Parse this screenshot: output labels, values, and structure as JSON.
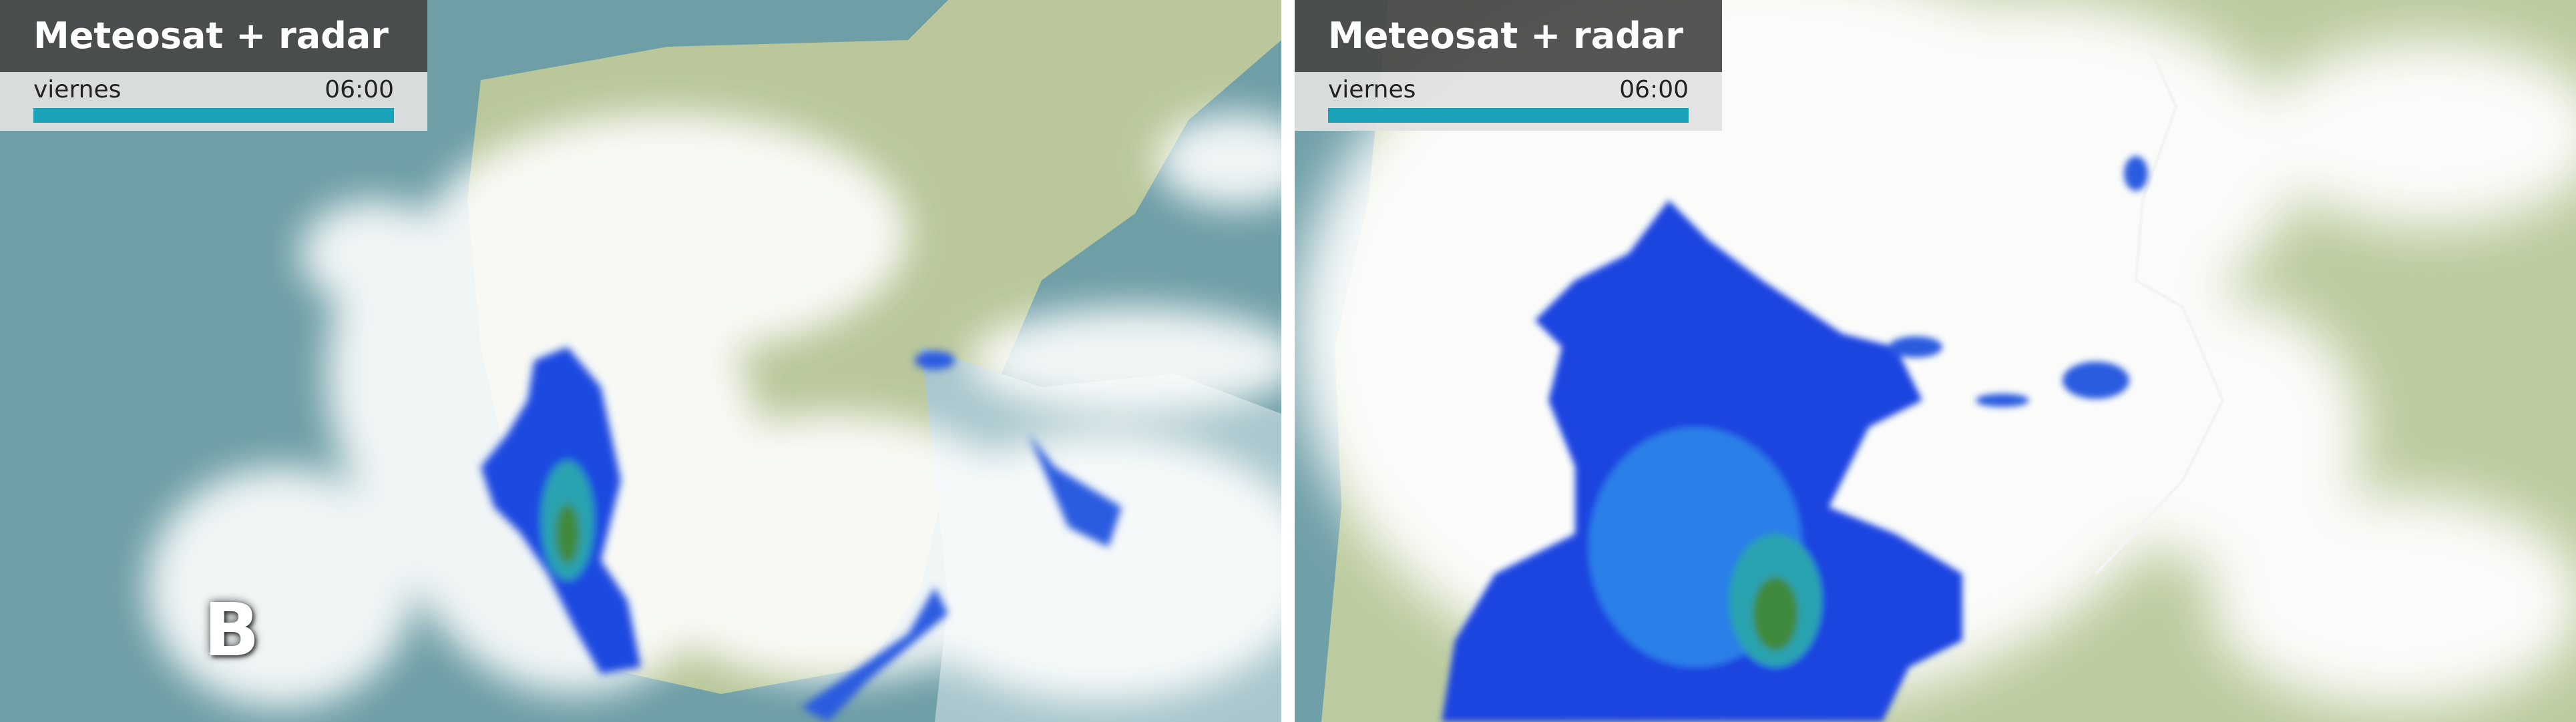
{
  "panels": [
    {
      "title": "Meteosat + radar",
      "day": "viernes",
      "time": "06:00",
      "label": "B"
    },
    {
      "title": "Meteosat + radar",
      "day": "viernes",
      "time": "06:00"
    }
  ]
}
